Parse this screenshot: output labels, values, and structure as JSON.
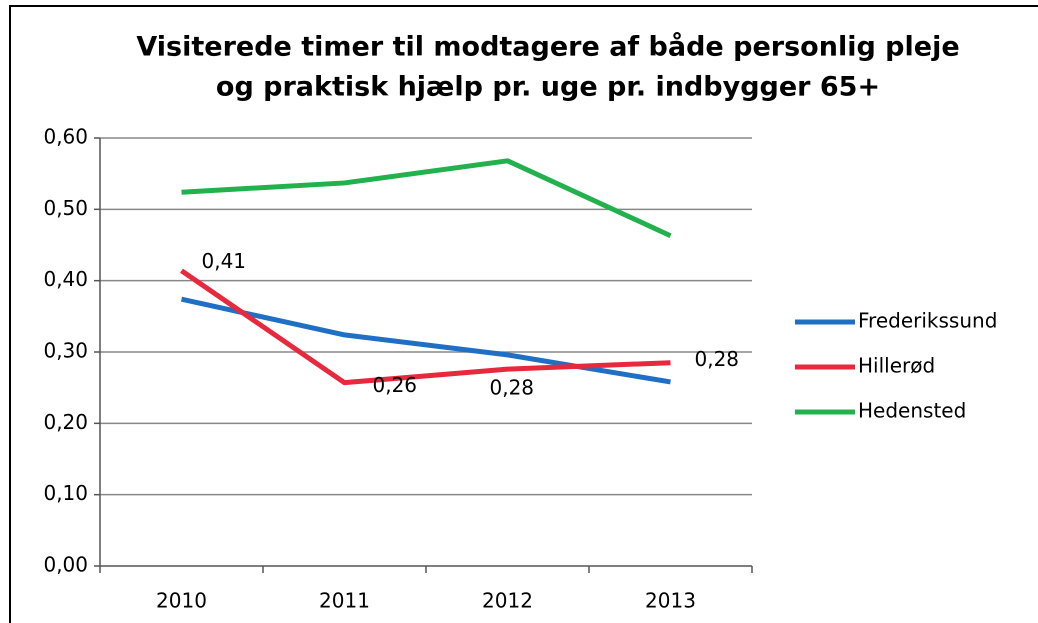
{
  "chart_data": {
    "type": "line",
    "title": [
      "Visiterede timer til modtagere af både personlig pleje",
      "og praktisk hjælp pr. uge pr. indbygger 65+"
    ],
    "categories": [
      "2010",
      "2011",
      "2012",
      "2013"
    ],
    "series": [
      {
        "name": "Frederikssund",
        "color": "#1f6fc5",
        "values": [
          0.374,
          0.324,
          0.296,
          0.258
        ]
      },
      {
        "name": "Hillerød",
        "color": "#e8283c",
        "values": [
          0.414,
          0.257,
          0.276,
          0.285
        ],
        "value_labels": [
          "0,41",
          "0,26",
          "0,28",
          "0,28"
        ]
      },
      {
        "name": "Hedensted",
        "color": "#22b14c",
        "values": [
          0.524,
          0.537,
          0.568,
          0.463
        ]
      }
    ],
    "ylim": [
      0,
      0.6
    ],
    "yticks": [
      {
        "value": 0,
        "label": "0,00"
      },
      {
        "value": 0.1,
        "label": "0,10"
      },
      {
        "value": 0.2,
        "label": "0,20"
      },
      {
        "value": 0.3,
        "label": "0,30"
      },
      {
        "value": 0.4,
        "label": "0,40"
      },
      {
        "value": 0.5,
        "label": "0,50"
      },
      {
        "value": 0.6,
        "label": "0,60"
      }
    ],
    "grid": true,
    "legend": "right"
  }
}
